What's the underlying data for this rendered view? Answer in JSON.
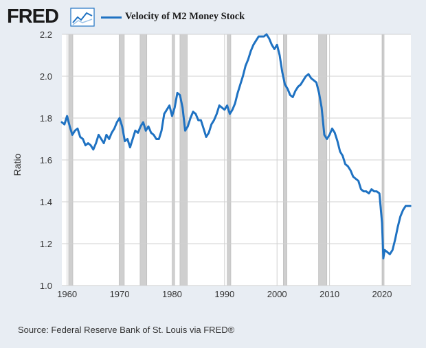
{
  "logo": {
    "text": "FRED",
    "icon": "fred-line-graph-icon"
  },
  "legend": {
    "label": "Velocity of M2 Money Stock"
  },
  "source": "Source: Federal Reserve Bank of St. Louis via FRED®",
  "colors": {
    "line": "#1f72c2",
    "background": "#e8edf3",
    "plot_background": "#ffffff",
    "recession": "#cfcfcf",
    "grid": "#d0d0d0",
    "text": "#333333"
  },
  "chart_data": {
    "type": "line",
    "title": "",
    "xlabel": "",
    "ylabel": "Ratio",
    "xlim": [
      1959,
      2025.5
    ],
    "ylim": [
      1.0,
      2.2
    ],
    "xticks": [
      1960,
      1970,
      1980,
      1990,
      2000,
      2010,
      2020
    ],
    "yticks": [
      1.0,
      1.2,
      1.4,
      1.6,
      1.8,
      2.0,
      2.2
    ],
    "ytick_labels": [
      "1.0",
      "1.2",
      "1.4",
      "1.6",
      "1.8",
      "2.0",
      "2.2"
    ],
    "grid": true,
    "legend_position": "top",
    "recessions": [
      [
        1960.3,
        1961.1
      ],
      [
        1969.9,
        1970.9
      ],
      [
        1973.9,
        1975.2
      ],
      [
        1980.0,
        1980.5
      ],
      [
        1981.5,
        1982.9
      ],
      [
        1990.5,
        1991.2
      ],
      [
        2001.2,
        2001.9
      ],
      [
        2007.9,
        2009.5
      ],
      [
        2020.1,
        2020.4
      ]
    ],
    "series": [
      {
        "name": "Velocity of M2 Money Stock",
        "x": [
          1959,
          1959.5,
          1960,
          1960.5,
          1961,
          1961.5,
          1962,
          1962.5,
          1963,
          1963.5,
          1964,
          1964.5,
          1965,
          1965.5,
          1966,
          1966.5,
          1967,
          1967.5,
          1968,
          1968.5,
          1969,
          1969.5,
          1970,
          1970.5,
          1971,
          1971.5,
          1972,
          1972.5,
          1973,
          1973.5,
          1974,
          1974.5,
          1975,
          1975.5,
          1976,
          1976.5,
          1977,
          1977.5,
          1978,
          1978.5,
          1979,
          1979.5,
          1980,
          1980.5,
          1981,
          1981.5,
          1982,
          1982.5,
          1983,
          1983.5,
          1984,
          1984.5,
          1985,
          1985.5,
          1986,
          1986.5,
          1987,
          1987.5,
          1988,
          1988.5,
          1989,
          1989.5,
          1990,
          1990.5,
          1991,
          1991.5,
          1992,
          1992.5,
          1993,
          1993.5,
          1994,
          1994.5,
          1995,
          1995.5,
          1996,
          1996.5,
          1997,
          1997.5,
          1998,
          1998.5,
          1999,
          1999.5,
          2000,
          2000.5,
          2001,
          2001.5,
          2002,
          2002.5,
          2003,
          2003.5,
          2004,
          2004.5,
          2005,
          2005.5,
          2006,
          2006.5,
          2007,
          2007.5,
          2008,
          2008.5,
          2009,
          2009.5,
          2010,
          2010.5,
          2011,
          2011.5,
          2012,
          2012.5,
          2013,
          2013.5,
          2014,
          2014.5,
          2015,
          2015.5,
          2016,
          2016.5,
          2017,
          2017.5,
          2018,
          2018.5,
          2019,
          2019.5,
          2020,
          2020.25,
          2020.5,
          2021,
          2021.5,
          2022,
          2022.5,
          2023,
          2023.5,
          2024,
          2024.5,
          2025,
          2025.4
        ],
        "y": [
          1.78,
          1.77,
          1.81,
          1.76,
          1.72,
          1.74,
          1.75,
          1.71,
          1.7,
          1.67,
          1.68,
          1.67,
          1.65,
          1.68,
          1.72,
          1.7,
          1.68,
          1.72,
          1.7,
          1.73,
          1.75,
          1.78,
          1.8,
          1.76,
          1.69,
          1.7,
          1.66,
          1.7,
          1.74,
          1.73,
          1.76,
          1.78,
          1.74,
          1.76,
          1.73,
          1.72,
          1.7,
          1.7,
          1.74,
          1.82,
          1.84,
          1.86,
          1.81,
          1.85,
          1.92,
          1.91,
          1.85,
          1.74,
          1.76,
          1.8,
          1.83,
          1.82,
          1.79,
          1.79,
          1.75,
          1.71,
          1.73,
          1.77,
          1.79,
          1.82,
          1.86,
          1.85,
          1.84,
          1.86,
          1.82,
          1.84,
          1.87,
          1.92,
          1.96,
          2.0,
          2.05,
          2.08,
          2.12,
          2.15,
          2.17,
          2.19,
          2.19,
          2.19,
          2.2,
          2.18,
          2.15,
          2.13,
          2.15,
          2.1,
          2.02,
          1.96,
          1.94,
          1.91,
          1.9,
          1.93,
          1.95,
          1.96,
          1.98,
          2.0,
          2.01,
          1.99,
          1.98,
          1.97,
          1.92,
          1.85,
          1.72,
          1.7,
          1.72,
          1.75,
          1.73,
          1.69,
          1.64,
          1.62,
          1.58,
          1.57,
          1.55,
          1.52,
          1.51,
          1.5,
          1.46,
          1.45,
          1.45,
          1.44,
          1.46,
          1.45,
          1.45,
          1.44,
          1.3,
          1.13,
          1.17,
          1.16,
          1.15,
          1.17,
          1.22,
          1.28,
          1.33,
          1.36,
          1.38,
          1.38,
          1.38
        ]
      }
    ]
  }
}
